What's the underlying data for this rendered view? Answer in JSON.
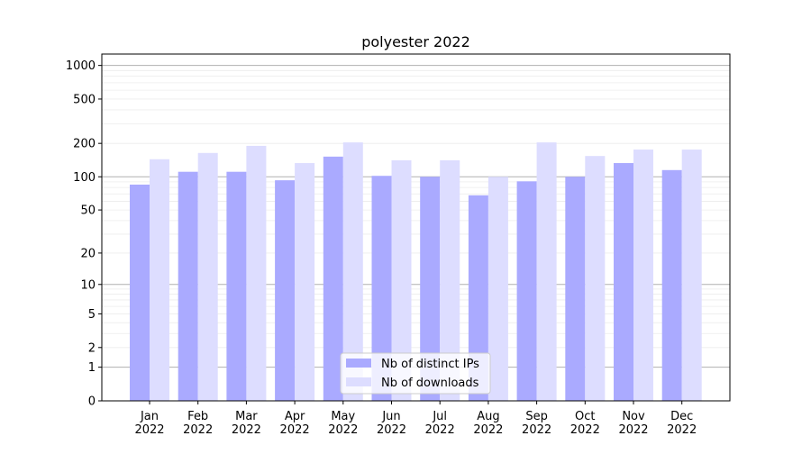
{
  "chart_data": {
    "type": "bar",
    "title": "polyester 2022",
    "xlabel": "",
    "ylabel": "",
    "yscale": "log10(y+1)",
    "ylim": [
      0,
      1270
    ],
    "yticks": [
      0,
      1,
      2,
      5,
      10,
      20,
      50,
      100,
      200,
      500,
      1000
    ],
    "grid": true,
    "legend_position": "lower-center",
    "categories": [
      "Jan\n2022",
      "Feb\n2022",
      "Mar\n2022",
      "Apr\n2022",
      "May\n2022",
      "Jun\n2022",
      "Jul\n2022",
      "Aug\n2022",
      "Sep\n2022",
      "Oct\n2022",
      "Nov\n2022",
      "Dec\n2022"
    ],
    "series": [
      {
        "name": "Nb of distinct IPs",
        "color": "#aaaaff",
        "values": [
          85,
          111,
          111,
          93,
          152,
          102,
          100,
          68,
          91,
          100,
          133,
          115
        ]
      },
      {
        "name": "Nb of downloads",
        "color": "#ddddff",
        "values": [
          144,
          164,
          190,
          133,
          204,
          141,
          141,
          100,
          204,
          154,
          176,
          176
        ]
      }
    ]
  }
}
